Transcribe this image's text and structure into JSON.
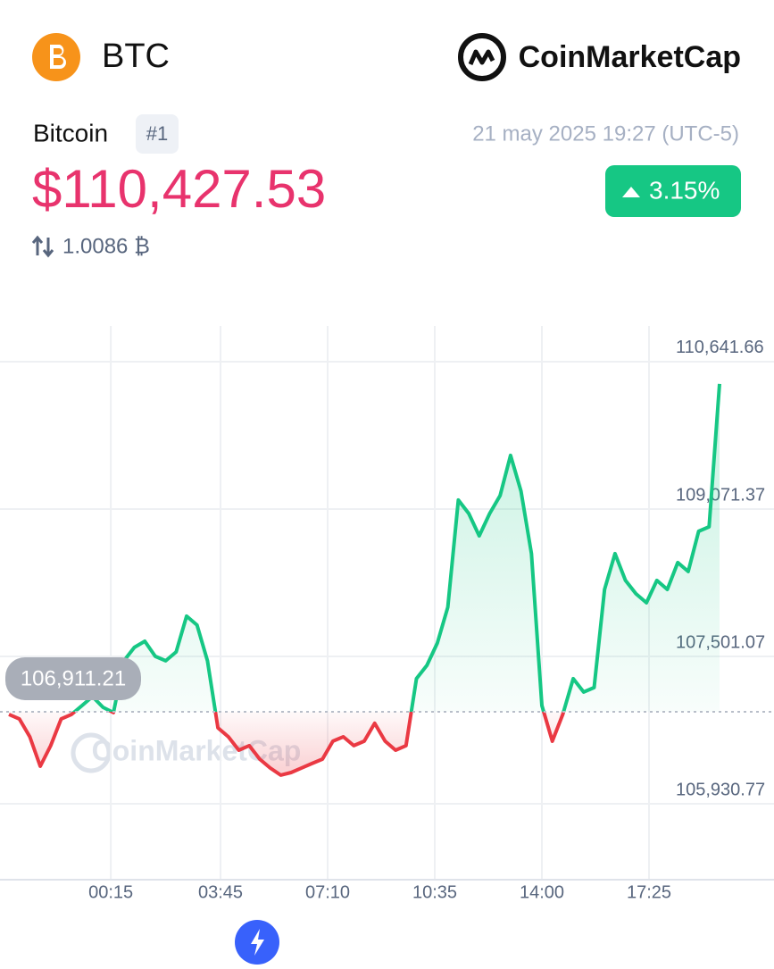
{
  "header": {
    "symbol": "BTC",
    "brand": "CoinMarketCap",
    "name": "Bitcoin",
    "rank": "#1",
    "timestamp": "21 may 2025 19:27 (UTC-5)",
    "price": "$110,427.53",
    "change": "3.15%",
    "btc_value": "1.0086 ₿"
  },
  "chart_data": {
    "type": "line",
    "watermark": "CoinMarketCap",
    "x": [
      "21:00",
      "21:20",
      "21:40",
      "22:00",
      "22:20",
      "22:40",
      "23:00",
      "23:20",
      "23:40",
      "00:00",
      "00:20",
      "00:40",
      "01:00",
      "01:20",
      "01:40",
      "02:00",
      "02:20",
      "02:40",
      "03:00",
      "03:20",
      "03:40",
      "04:00",
      "04:20",
      "04:40",
      "05:00",
      "05:20",
      "05:40",
      "06:00",
      "06:20",
      "06:40",
      "07:00",
      "07:20",
      "07:40",
      "08:00",
      "08:20",
      "08:40",
      "09:00",
      "09:20",
      "09:40",
      "10:00",
      "10:20",
      "10:40",
      "11:00",
      "11:20",
      "11:40",
      "12:00",
      "12:20",
      "12:40",
      "13:00",
      "13:20",
      "13:40",
      "14:00",
      "14:20",
      "14:40",
      "15:00",
      "15:20",
      "15:40",
      "16:00",
      "16:20",
      "16:40",
      "17:00",
      "17:20",
      "17:40",
      "18:00",
      "18:20",
      "18:40",
      "19:00",
      "19:20",
      "19:40"
    ],
    "series": [
      {
        "name": "BTC",
        "values": [
          106883,
          106835,
          106645,
          106331,
          106550,
          106835,
          106883,
          106978,
          107073,
          106959,
          106902,
          107454,
          107597,
          107663,
          107502,
          107454,
          107549,
          107930,
          107835,
          107454,
          106740,
          106645,
          106502,
          106550,
          106407,
          106312,
          106236,
          106264,
          106312,
          106360,
          106407,
          106598,
          106645,
          106550,
          106598,
          106788,
          106598,
          106502,
          106550,
          107264,
          107406,
          107644,
          108025,
          109167,
          109024,
          108786,
          109024,
          109215,
          109643,
          109262,
          108596,
          106978,
          106598,
          106883,
          107264,
          107121,
          107169,
          108215,
          108596,
          108311,
          108168,
          108073,
          108311,
          108215,
          108501,
          108406,
          108834,
          108882,
          110404
        ]
      }
    ],
    "up_color": "#16c784",
    "down_color": "#ea3943",
    "baseline": {
      "value": 106911.21,
      "label": "106,911.21"
    },
    "ylim": [
      105122,
      111022
    ],
    "yticks": [
      {
        "value": 110641.66,
        "label": "110,641.66"
      },
      {
        "value": 109071.37,
        "label": "109,071.37"
      },
      {
        "value": 107501.07,
        "label": "107,501.07"
      },
      {
        "value": 105930.77,
        "label": "105,930.77"
      }
    ],
    "xticks": [
      "00:15",
      "03:45",
      "07:10",
      "10:35",
      "14:00",
      "17:25"
    ],
    "grid": true
  }
}
